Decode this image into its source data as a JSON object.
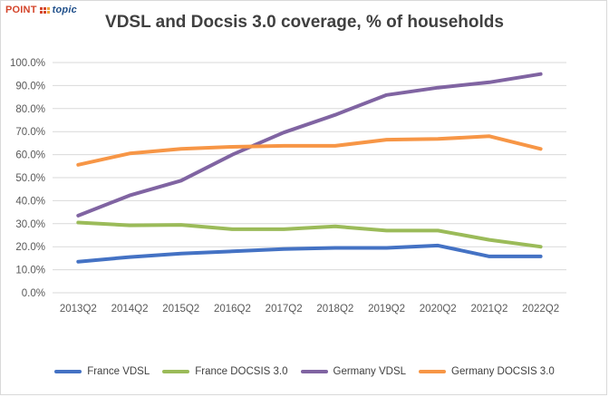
{
  "logo": {
    "main": "POINT",
    "sub": "topic"
  },
  "chart_data": {
    "type": "line",
    "title": "VDSL and Docsis 3.0 coverage, % of households",
    "xlabel": "",
    "ylabel": "",
    "ylim": [
      0,
      100
    ],
    "y_ticks": [
      "0.0%",
      "10.0%",
      "20.0%",
      "30.0%",
      "40.0%",
      "50.0%",
      "60.0%",
      "70.0%",
      "80.0%",
      "90.0%",
      "100.0%"
    ],
    "categories": [
      "2013Q2",
      "2014Q2",
      "2015Q2",
      "2016Q2",
      "2017Q2",
      "2018Q2",
      "2019Q2",
      "2020Q2",
      "2021Q2",
      "2022Q2"
    ],
    "grid": true,
    "legend_position": "bottom",
    "series": [
      {
        "name": "France VDSL",
        "color": "#4472c4",
        "values": [
          13.5,
          15.5,
          17,
          18,
          19,
          19.5,
          19.5,
          20.5,
          15.8,
          15.8
        ]
      },
      {
        "name": "France DOCSIS 3.0",
        "color": "#9bbb59",
        "values": [
          30.5,
          29.3,
          29.5,
          27.6,
          27.6,
          28.8,
          27,
          27,
          23,
          20
        ]
      },
      {
        "name": "Germany VDSL",
        "color": "#8064a2",
        "values": [
          33.5,
          42.3,
          48.7,
          60,
          69.6,
          77.3,
          85.9,
          89.1,
          91.4,
          95
        ]
      },
      {
        "name": "Germany DOCSIS 3.0",
        "color": "#f79646",
        "values": [
          55.6,
          60.5,
          62.5,
          63.4,
          63.8,
          63.8,
          66.5,
          66.8,
          68,
          62.5
        ]
      }
    ]
  }
}
